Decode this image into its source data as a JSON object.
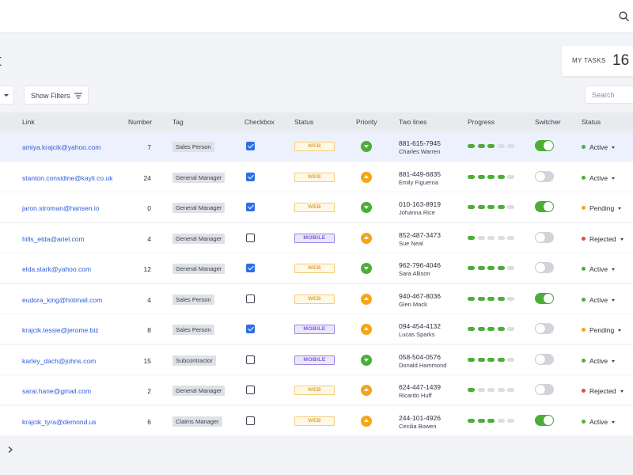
{
  "page": {
    "title": "t"
  },
  "tasks": {
    "label": "MY TASKS",
    "count": "16"
  },
  "toolbar": {
    "filters_label": "Show Filters",
    "search_placeholder": "Search"
  },
  "colors": {
    "link": "#2f5bd8",
    "green": "#4cae36",
    "orange": "#f3a61c",
    "active": "#4cae36",
    "pending": "#f3a61c",
    "rejected": "#e04b4b"
  },
  "table": {
    "headers": {
      "link": "Link",
      "number": "Number",
      "tag": "Tag",
      "checkbox": "Checkbox",
      "status": "Status",
      "priority": "Priority",
      "two_lines": "Two lines",
      "progress": "Progress",
      "switcher": "Switcher",
      "status2": "Status"
    },
    "rows": [
      {
        "link": "amiya.krajcik@yahoo.com",
        "number": "7",
        "tag": "Sales Person",
        "checked": true,
        "status": "WEB",
        "priority": "low",
        "phone": "881-615-7945",
        "name": "Charles Warren",
        "progress": 3,
        "switch": true,
        "state": "Active",
        "selected": true
      },
      {
        "link": "stanton.considine@kayli.co.uk",
        "number": "24",
        "tag": "General Manager",
        "checked": true,
        "status": "WEB",
        "priority": "high",
        "phone": "881-449-6835",
        "name": "Emily Figueroa",
        "progress": 4,
        "switch": false,
        "state": "Active",
        "selected": false
      },
      {
        "link": "jaron.stroman@hansen.io",
        "number": "0",
        "tag": "General Manager",
        "checked": true,
        "status": "WEB",
        "priority": "low",
        "phone": "010-163-8919",
        "name": "Johanna Rice",
        "progress": 4,
        "switch": true,
        "state": "Pending",
        "selected": false
      },
      {
        "link": "hills_elda@ariel.com",
        "number": "4",
        "tag": "General Manager",
        "checked": false,
        "status": "MOBILE",
        "priority": "high",
        "phone": "852-487-3473",
        "name": "Sue Neal",
        "progress": 1,
        "switch": false,
        "state": "Rejected",
        "selected": false
      },
      {
        "link": "elda.stark@yahoo.com",
        "number": "12",
        "tag": "General Manager",
        "checked": true,
        "status": "WEB",
        "priority": "low",
        "phone": "962-796-4046",
        "name": "Sara Allison",
        "progress": 4,
        "switch": false,
        "state": "Active",
        "selected": false
      },
      {
        "link": "eudora_king@hotmail.com",
        "number": "4",
        "tag": "Sales Person",
        "checked": false,
        "status": "WEB",
        "priority": "high",
        "phone": "940-467-8036",
        "name": "Glen Mack",
        "progress": 4,
        "switch": true,
        "state": "Active",
        "selected": false
      },
      {
        "link": "krajcik.tessie@jerome.biz",
        "number": "8",
        "tag": "Sales Person",
        "checked": true,
        "status": "MOBILE",
        "priority": "high",
        "phone": "094-454-4132",
        "name": "Lucas Sparks",
        "progress": 4,
        "switch": false,
        "state": "Pending",
        "selected": false
      },
      {
        "link": "karley_dach@johns.com",
        "number": "15",
        "tag": "Subcontractor",
        "checked": false,
        "status": "MOBILE",
        "priority": "low",
        "phone": "058-504-0576",
        "name": "Donald Hammond",
        "progress": 4,
        "switch": false,
        "state": "Active",
        "selected": false
      },
      {
        "link": "sarai.hane@gmail.com",
        "number": "2",
        "tag": "General Manager",
        "checked": false,
        "status": "WEB",
        "priority": "high",
        "phone": "624-447-1439",
        "name": "Ricardo Huff",
        "progress": 1,
        "switch": false,
        "state": "Rejected",
        "selected": false
      },
      {
        "link": "krajcik_tyra@demond.us",
        "number": "6",
        "tag": "Claims Manager",
        "checked": false,
        "status": "WEB",
        "priority": "high",
        "phone": "244-101-4926",
        "name": "Cecilia Bowen",
        "progress": 3,
        "switch": true,
        "state": "Active",
        "selected": false
      }
    ]
  }
}
